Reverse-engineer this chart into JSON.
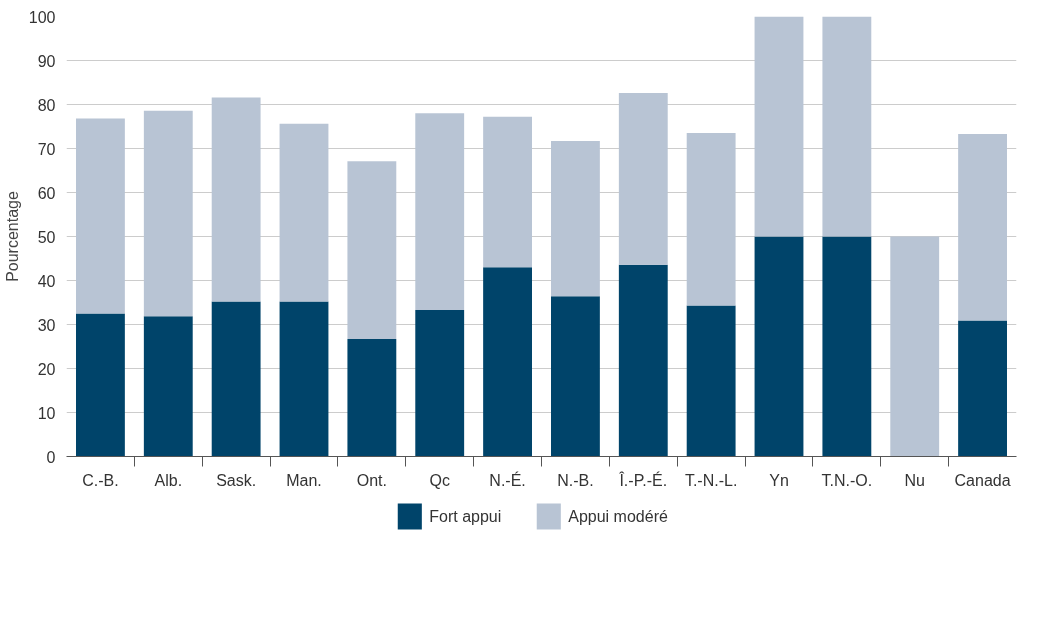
{
  "chart_data": {
    "type": "bar",
    "stacked": true,
    "ylabel": "Pourcentage",
    "categories": [
      "C.-B.",
      "Alb.",
      "Sask.",
      "Man.",
      "Ont.",
      "Qc",
      "N.-É.",
      "N.-B.",
      "Î.-P.-É.",
      "T.-N.-L.",
      "Yn",
      "T.N.-O.",
      "Nu",
      "Canada"
    ],
    "series": [
      {
        "name": "Fort appui",
        "color": "#00446a",
        "values": [
          32.5,
          31.9,
          35.2,
          35.2,
          26.7,
          33.3,
          43.0,
          36.4,
          43.6,
          34.3,
          50,
          50,
          0,
          30.9
        ]
      },
      {
        "name": "Appui modéré",
        "color": "#b8c4d4",
        "values": [
          44.3,
          46.7,
          46.4,
          40.4,
          40.4,
          44.7,
          34.2,
          35.3,
          39.0,
          39.2,
          50,
          50,
          50,
          42.4
        ]
      }
    ],
    "ylim": [
      0,
      100
    ],
    "yticks": [
      0,
      10,
      20,
      30,
      40,
      50,
      60,
      70,
      80,
      90,
      100
    ],
    "grid": "y",
    "legend": "bottom"
  }
}
